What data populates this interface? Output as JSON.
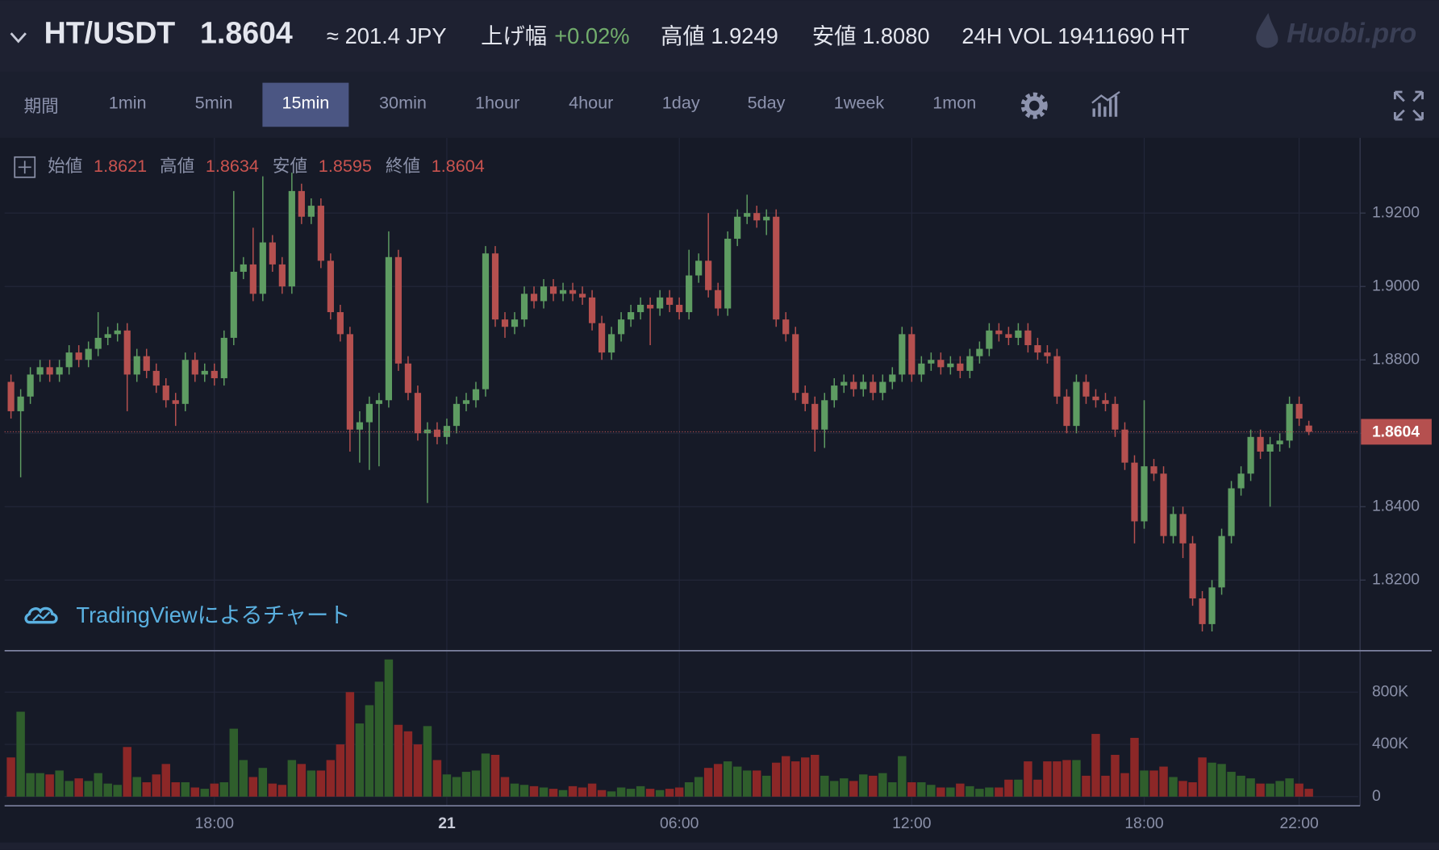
{
  "header": {
    "pair": "HT/USDT",
    "price": "1.8604",
    "jpy": "≈ 201.4 JPY",
    "change_label": "上げ幅",
    "change": "+0.02%",
    "high": "高値 1.9249",
    "low": "安値 1.8080",
    "volume": "24H VOL 19411690 HT",
    "logo": "Huobi.pro"
  },
  "toolbar": {
    "period": "期間",
    "intervals": [
      "1min",
      "5min",
      "15min",
      "30min",
      "1hour",
      "4hour",
      "1day",
      "5day",
      "1week",
      "1mon"
    ],
    "active": "15min"
  },
  "watermark": "TradingViewによるチャート",
  "chart_data": [
    {
      "type": "candlestick",
      "legend_labels": [
        "始値",
        "高値",
        "安値",
        "終値"
      ],
      "up_color": "#5e9c62",
      "down_color": "#b5504f",
      "current_price": 1.8604,
      "grid": true,
      "ylim": [
        1.801,
        1.9405
      ],
      "yticks": [
        {
          "value": 1.82,
          "label": "1.8200"
        },
        {
          "value": 1.84,
          "label": "1.8400"
        },
        {
          "value": 1.86,
          "label": "1.8600"
        },
        {
          "value": 1.88,
          "label": "1.8800"
        },
        {
          "value": 1.9,
          "label": "1.9000"
        },
        {
          "value": 1.92,
          "label": "1.9200"
        }
      ],
      "open": [
        1.874,
        1.866,
        1.87,
        1.876,
        1.878,
        1.876,
        1.878,
        1.882,
        1.88,
        1.883,
        1.886,
        1.887,
        1.888,
        1.876,
        1.881,
        1.877,
        1.873,
        1.869,
        1.868,
        1.88,
        1.876,
        1.877,
        1.875,
        1.886,
        1.904,
        1.906,
        1.898,
        1.912,
        1.906,
        1.9,
        1.926,
        1.919,
        1.922,
        1.907,
        1.893,
        1.887,
        1.861,
        1.863,
        1.868,
        1.869,
        1.908,
        1.879,
        1.871,
        1.86,
        1.861,
        1.859,
        1.862,
        1.868,
        1.869,
        1.872,
        1.909,
        1.891,
        1.889,
        1.891,
        1.898,
        1.896,
        1.9,
        1.898,
        1.899,
        1.898,
        1.897,
        1.89,
        1.882,
        1.887,
        1.891,
        1.893,
        1.895,
        1.894,
        1.897,
        1.895,
        1.893,
        1.903,
        1.907,
        1.899,
        1.894,
        1.913,
        1.919,
        1.92,
        1.918,
        1.919,
        1.891,
        1.887,
        1.871,
        1.868,
        1.861,
        1.869,
        1.873,
        1.874,
        1.872,
        1.874,
        1.871,
        1.874,
        1.876,
        1.887,
        1.876,
        1.879,
        1.88,
        1.878,
        1.879,
        1.877,
        1.881,
        1.883,
        1.888,
        1.887,
        1.886,
        1.888,
        1.884,
        1.882,
        1.881,
        1.87,
        1.862,
        1.874,
        1.87,
        1.869,
        1.868,
        1.861,
        1.852,
        1.836,
        1.851,
        1.849,
        1.832,
        1.838,
        1.83,
        1.815,
        1.808,
        1.818,
        1.832,
        1.845,
        1.849,
        1.859,
        1.855,
        1.857,
        1.858,
        1.868,
        1.8621
      ],
      "high": [
        1.876,
        1.872,
        1.878,
        1.88,
        1.88,
        1.88,
        1.884,
        1.884,
        1.885,
        1.893,
        1.889,
        1.89,
        1.89,
        1.883,
        1.883,
        1.879,
        1.875,
        1.871,
        1.882,
        1.882,
        1.879,
        1.879,
        1.888,
        1.926,
        1.908,
        1.916,
        1.93,
        1.914,
        1.908,
        1.931,
        1.928,
        1.924,
        1.924,
        1.909,
        1.895,
        1.889,
        1.866,
        1.87,
        1.871,
        1.915,
        1.91,
        1.881,
        1.873,
        1.863,
        1.863,
        1.864,
        1.87,
        1.871,
        1.874,
        1.911,
        1.911,
        1.893,
        1.893,
        1.9,
        1.9,
        1.902,
        1.902,
        1.901,
        1.901,
        1.9,
        1.899,
        1.892,
        1.889,
        1.893,
        1.895,
        1.897,
        1.897,
        1.899,
        1.899,
        1.897,
        1.91,
        1.909,
        1.92,
        1.901,
        1.915,
        1.921,
        1.925,
        1.922,
        1.921,
        1.921,
        1.893,
        1.889,
        1.873,
        1.87,
        1.871,
        1.875,
        1.876,
        1.876,
        1.876,
        1.876,
        1.876,
        1.878,
        1.889,
        1.889,
        1.881,
        1.882,
        1.882,
        1.881,
        1.881,
        1.883,
        1.885,
        1.89,
        1.89,
        1.889,
        1.89,
        1.89,
        1.886,
        1.884,
        1.883,
        1.872,
        1.876,
        1.876,
        1.872,
        1.871,
        1.87,
        1.863,
        1.854,
        1.869,
        1.853,
        1.851,
        1.84,
        1.84,
        1.832,
        1.817,
        1.82,
        1.834,
        1.847,
        1.851,
        1.861,
        1.861,
        1.859,
        1.86,
        1.87,
        1.87,
        1.8634
      ],
      "low": [
        1.864,
        1.848,
        1.868,
        1.874,
        1.874,
        1.874,
        1.876,
        1.878,
        1.878,
        1.881,
        1.884,
        1.885,
        1.866,
        1.874,
        1.875,
        1.871,
        1.867,
        1.862,
        1.866,
        1.874,
        1.874,
        1.873,
        1.873,
        1.884,
        1.902,
        1.896,
        1.896,
        1.904,
        1.898,
        1.898,
        1.917,
        1.917,
        1.905,
        1.891,
        1.885,
        1.855,
        1.852,
        1.85,
        1.851,
        1.867,
        1.877,
        1.869,
        1.858,
        1.841,
        1.857,
        1.857,
        1.86,
        1.866,
        1.867,
        1.87,
        1.889,
        1.886,
        1.887,
        1.889,
        1.894,
        1.894,
        1.896,
        1.896,
        1.896,
        1.895,
        1.888,
        1.88,
        1.88,
        1.885,
        1.889,
        1.891,
        1.884,
        1.892,
        1.893,
        1.891,
        1.891,
        1.901,
        1.897,
        1.892,
        1.892,
        1.911,
        1.917,
        1.916,
        1.914,
        1.889,
        1.885,
        1.869,
        1.866,
        1.855,
        1.856,
        1.867,
        1.871,
        1.87,
        1.87,
        1.869,
        1.869,
        1.872,
        1.874,
        1.874,
        1.874,
        1.877,
        1.876,
        1.876,
        1.875,
        1.875,
        1.879,
        1.881,
        1.885,
        1.884,
        1.884,
        1.882,
        1.88,
        1.879,
        1.868,
        1.86,
        1.86,
        1.868,
        1.867,
        1.866,
        1.859,
        1.85,
        1.83,
        1.834,
        1.847,
        1.83,
        1.83,
        1.826,
        1.813,
        1.806,
        1.806,
        1.816,
        1.83,
        1.843,
        1.847,
        1.853,
        1.84,
        1.855,
        1.856,
        1.862,
        1.8595
      ],
      "close": [
        1.866,
        1.87,
        1.876,
        1.878,
        1.876,
        1.878,
        1.882,
        1.88,
        1.883,
        1.886,
        1.887,
        1.888,
        1.876,
        1.881,
        1.877,
        1.873,
        1.869,
        1.868,
        1.88,
        1.876,
        1.877,
        1.875,
        1.886,
        1.904,
        1.906,
        1.898,
        1.912,
        1.906,
        1.9,
        1.926,
        1.919,
        1.922,
        1.907,
        1.893,
        1.887,
        1.861,
        1.863,
        1.868,
        1.869,
        1.908,
        1.879,
        1.871,
        1.86,
        1.861,
        1.859,
        1.862,
        1.868,
        1.869,
        1.872,
        1.909,
        1.891,
        1.889,
        1.891,
        1.898,
        1.896,
        1.9,
        1.898,
        1.899,
        1.898,
        1.897,
        1.89,
        1.882,
        1.887,
        1.891,
        1.893,
        1.895,
        1.894,
        1.897,
        1.895,
        1.893,
        1.903,
        1.907,
        1.899,
        1.894,
        1.913,
        1.919,
        1.92,
        1.918,
        1.919,
        1.891,
        1.887,
        1.871,
        1.868,
        1.861,
        1.869,
        1.873,
        1.874,
        1.872,
        1.874,
        1.871,
        1.874,
        1.876,
        1.887,
        1.876,
        1.879,
        1.88,
        1.878,
        1.879,
        1.877,
        1.881,
        1.883,
        1.888,
        1.887,
        1.886,
        1.888,
        1.884,
        1.882,
        1.881,
        1.87,
        1.862,
        1.874,
        1.87,
        1.869,
        1.868,
        1.861,
        1.852,
        1.836,
        1.851,
        1.849,
        1.832,
        1.838,
        1.83,
        1.815,
        1.808,
        1.818,
        1.832,
        1.845,
        1.849,
        1.859,
        1.855,
        1.857,
        1.858,
        1.868,
        1.864,
        1.8604
      ]
    },
    {
      "type": "bar",
      "up_color": "#2f5e2c",
      "down_color": "#8c2727",
      "grid": true,
      "ylim": [
        -70000,
        1110000
      ],
      "yticks": [
        0,
        {
          "value": 400000,
          "label": "400K"
        },
        {
          "value": 800000,
          "label": "800K"
        }
      ],
      "xlim": [
        -0.66,
        139.1
      ],
      "xticks": [
        {
          "value": 21,
          "label": "18:00"
        },
        {
          "value": 45,
          "label": "21"
        },
        {
          "value": 69,
          "label": "06:00"
        },
        {
          "value": 93,
          "label": "12:00"
        },
        {
          "value": 117,
          "label": "18:00"
        },
        {
          "value": 133,
          "label": "22:00"
        }
      ],
      "values": [
        300000,
        650000,
        180000,
        180000,
        170000,
        200000,
        120000,
        140000,
        120000,
        180000,
        100000,
        90000,
        380000,
        150000,
        110000,
        170000,
        250000,
        110000,
        110000,
        70000,
        60000,
        100000,
        110000,
        520000,
        280000,
        150000,
        220000,
        100000,
        90000,
        280000,
        250000,
        200000,
        200000,
        280000,
        400000,
        800000,
        560000,
        700000,
        880000,
        1050000,
        550000,
        500000,
        400000,
        540000,
        280000,
        170000,
        150000,
        190000,
        200000,
        330000,
        320000,
        150000,
        100000,
        90000,
        80000,
        70000,
        60000,
        50000,
        80000,
        70000,
        100000,
        50000,
        40000,
        70000,
        60000,
        80000,
        60000,
        50000,
        60000,
        70000,
        110000,
        150000,
        220000,
        250000,
        270000,
        230000,
        200000,
        200000,
        160000,
        260000,
        310000,
        270000,
        300000,
        320000,
        160000,
        120000,
        140000,
        120000,
        170000,
        160000,
        180000,
        110000,
        310000,
        110000,
        110000,
        90000,
        70000,
        70000,
        100000,
        80000,
        60000,
        70000,
        70000,
        130000,
        130000,
        270000,
        130000,
        270000,
        270000,
        280000,
        280000,
        160000,
        480000,
        160000,
        320000,
        180000,
        450000,
        200000,
        200000,
        230000,
        150000,
        120000,
        110000,
        300000,
        260000,
        250000,
        190000,
        160000,
        140000,
        100000,
        100000,
        120000,
        140000,
        100000,
        60000
      ]
    }
  ]
}
